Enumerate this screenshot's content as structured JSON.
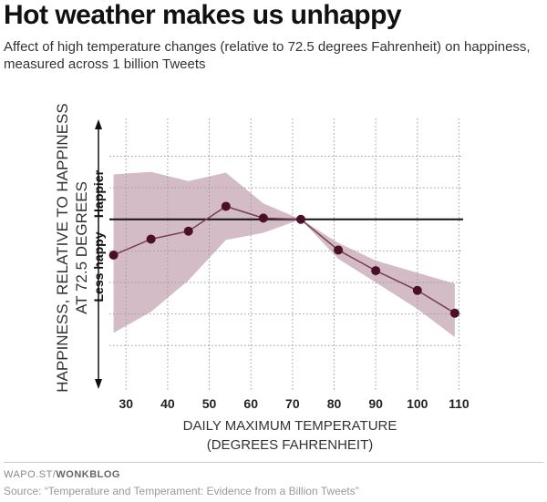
{
  "header": {
    "title": "Hot weather makes us unhappy",
    "subtitle": "Affect of high temperature changes (relative to 72.5 degrees Fahrenheit) on happiness, measured across 1 billion Tweets"
  },
  "footer": {
    "credit_prefix": "WAPO.ST/",
    "credit_brand": "WONKBLOG",
    "source": "Source: “Temperature and Temperament: Evidence from a Billion Tweets”"
  },
  "colors": {
    "band": "#d4bcc6",
    "line": "#7a3b56",
    "marker": "#4a1027",
    "baseline": "#111111",
    "grid": "#9a9a9a"
  },
  "chart_data": {
    "type": "line",
    "title": "Hot weather makes us unhappy",
    "xlabel": "DAILY MAXIMUM TEMPERATURE (DEGREES FAHRENHEIT)",
    "xlabel_lines": [
      "DAILY MAXIMUM TEMPERATURE",
      "(DEGREES FAHRENHEIT)"
    ],
    "ylabel": "HAPPINESS, RELATIVE TO HAPPINESS AT 72.5 DEGREES",
    "ylabel_lines": [
      "HAPPINESS, RELATIVE TO HAPPINESS",
      "AT 72.5 DEGREES"
    ],
    "y_up_label": "Happier",
    "y_down_label": "Less happy",
    "xlim": [
      26,
      111
    ],
    "ylim": [
      -4.1,
      2.4
    ],
    "x_ticks": [
      30,
      40,
      50,
      60,
      70,
      80,
      90,
      100,
      110
    ],
    "y_gridlines": [
      1.5,
      0.75,
      -0.75,
      -1.5,
      -2.25,
      -3.0
    ],
    "baseline_y": 0,
    "grid": true,
    "series": [
      {
        "x": [
          27,
          36,
          45,
          54,
          63,
          72,
          81,
          90,
          100,
          109
        ],
        "y": [
          -0.85,
          -0.47,
          -0.28,
          0.31,
          0.03,
          0.0,
          -0.73,
          -1.22,
          -1.69,
          -2.23
        ]
      }
    ],
    "band": {
      "x": [
        27,
        36,
        45,
        54,
        63,
        72,
        81,
        90,
        100,
        109
      ],
      "upper": [
        1.07,
        1.13,
        0.91,
        1.11,
        0.38,
        0.0,
        -0.56,
        -0.98,
        -1.27,
        -1.53
      ],
      "lower": [
        -2.7,
        -2.2,
        -1.45,
        -0.49,
        -0.32,
        0.0,
        -0.94,
        -1.5,
        -2.13,
        -2.8
      ]
    }
  }
}
